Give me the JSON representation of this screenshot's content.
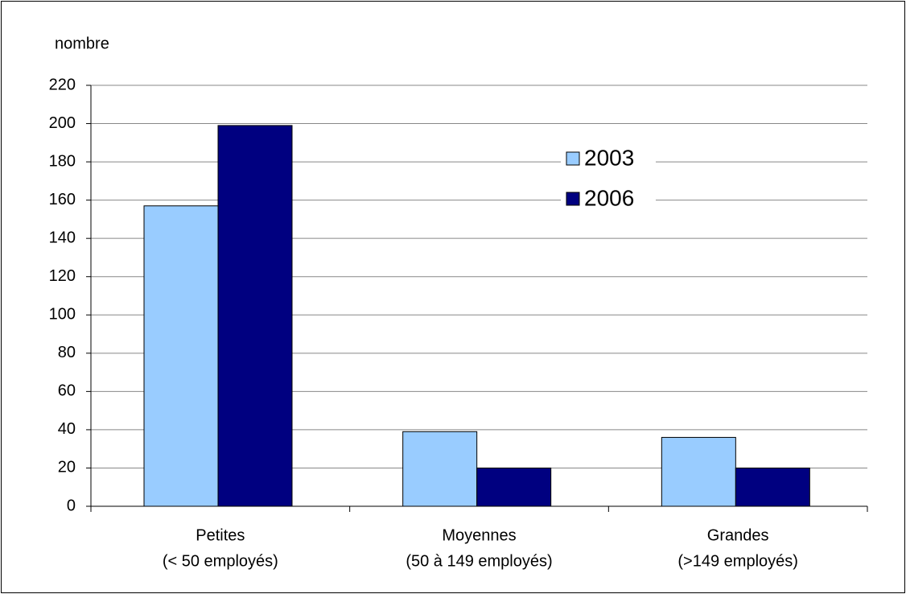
{
  "chart_data": {
    "type": "bar",
    "y_label": "nombre",
    "categories": [
      [
        "Petites",
        "(< 50 employés)"
      ],
      [
        "Moyennes",
        "(50 à 149 employés)"
      ],
      [
        "Grandes",
        "(>149 employés)"
      ]
    ],
    "series": [
      {
        "name": "2003",
        "color": "#99ccff",
        "values": [
          157,
          39,
          36
        ]
      },
      {
        "name": "2006",
        "color": "#000080",
        "values": [
          199,
          20,
          20
        ]
      }
    ],
    "ylim": [
      0,
      220
    ],
    "yticks": [
      0,
      20,
      40,
      60,
      80,
      100,
      120,
      140,
      160,
      180,
      200,
      220
    ],
    "grid": true,
    "legend": "upper right"
  }
}
